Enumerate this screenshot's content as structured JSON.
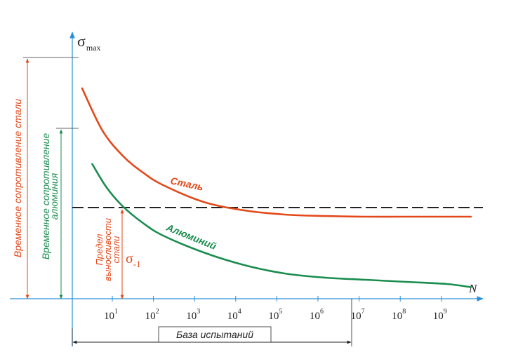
{
  "chart_data": {
    "type": "line",
    "title": "",
    "xlabel": "N",
    "ylabel": "σmax",
    "x_scale": "log",
    "x_tick_labels": [
      {
        "base": "10",
        "exp": "1"
      },
      {
        "base": "10",
        "exp": "2"
      },
      {
        "base": "10",
        "exp": "3"
      },
      {
        "base": "10",
        "exp": "4"
      },
      {
        "base": "10",
        "exp": "5"
      },
      {
        "base": "10",
        "exp": "6"
      },
      {
        "base": "10",
        "exp": "7"
      },
      {
        "base": "10",
        "exp": "8"
      },
      {
        "base": "10",
        "exp": "9"
      }
    ],
    "series": [
      {
        "name": "Сталь",
        "color": "#e2491a",
        "log10_N": [
          0.0,
          0.5,
          1.0,
          1.5,
          2.0,
          3.0,
          4.0,
          5.0,
          6.0,
          7.0,
          8.0,
          9.0,
          9.6
        ],
        "sigma": [
          1.0,
          0.8,
          0.68,
          0.6,
          0.54,
          0.46,
          0.42,
          0.4,
          0.393,
          0.39,
          0.39,
          0.39,
          0.39
        ]
      },
      {
        "name": "Алюминий",
        "color": "#1a8c4e",
        "log10_N": [
          0.25,
          0.6,
          1.0,
          1.5,
          2.0,
          3.0,
          4.0,
          5.0,
          6.0,
          7.0,
          8.0,
          9.0,
          9.6
        ],
        "sigma": [
          0.64,
          0.53,
          0.44,
          0.36,
          0.3,
          0.22,
          0.16,
          0.12,
          0.1,
          0.09,
          0.08,
          0.07,
          0.055
        ]
      }
    ],
    "endurance_limit": {
      "value": 0.38,
      "label": "Предел выносливости стали",
      "symbol": "σ-1",
      "color": "#e2491a"
    },
    "ultimate_strength_steel": {
      "value": 1.1,
      "label": "Временное сопротивление стали",
      "color": "#e2491a"
    },
    "ultimate_strength_aluminum": {
      "value": 0.72,
      "label": "Временное сопротивление алюминия",
      "color": "#1a8c4e"
    },
    "test_base": {
      "label": "База испытаний",
      "to_log10_N": 7
    },
    "axis_color": "#2a8fd6",
    "grid": false
  }
}
